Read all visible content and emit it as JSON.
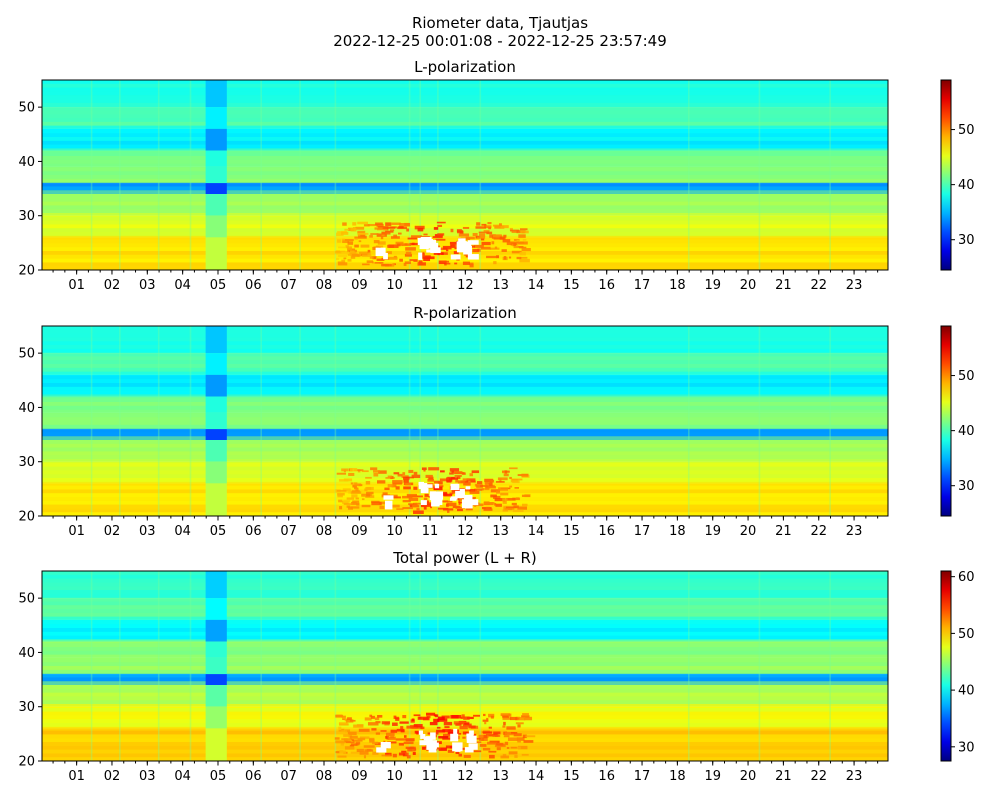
{
  "figure": {
    "title": "Riometer data, Tjautjas",
    "subtitle": "2022-12-25 00:01:08 - 2022-12-25 23:57:49"
  },
  "chart_data": [
    {
      "type": "heatmap",
      "title": "L-polarization",
      "xlabel": "",
      "ylabel": "",
      "x_axis": "hour of day (UTC)",
      "xlim": [
        0.02,
        23.96
      ],
      "ylim": [
        20,
        55
      ],
      "y_ticks": [
        20,
        30,
        40,
        50
      ],
      "x_tick_labels": [
        "01",
        "02",
        "03",
        "04",
        "05",
        "06",
        "07",
        "08",
        "09",
        "10",
        "11",
        "12",
        "13",
        "14",
        "15",
        "16",
        "17",
        "18",
        "19",
        "20",
        "21",
        "22",
        "23"
      ],
      "colormap": "jet",
      "colorbar": {
        "range": [
          24.5,
          59
        ],
        "ticks": [
          30,
          40,
          50
        ]
      },
      "bands": [
        {
          "y_range": [
            50,
            55
          ],
          "level": 38.5
        },
        {
          "y_range": [
            46,
            50
          ],
          "level": 40
        },
        {
          "y_range": [
            42,
            46
          ],
          "level": 37
        },
        {
          "y_range": [
            39,
            42
          ],
          "level": 41.5
        },
        {
          "y_range": [
            36,
            39
          ],
          "level": 42
        },
        {
          "y_range": [
            34,
            36
          ],
          "level": 34
        },
        {
          "y_range": [
            30,
            34
          ],
          "level": 43
        },
        {
          "y_range": [
            26,
            30
          ],
          "level": 45
        },
        {
          "y_range": [
            20,
            26
          ],
          "level": 47
        }
      ],
      "features": [
        {
          "kind": "dip",
          "x_range": [
            4.65,
            5.25
          ],
          "delta": -3
        },
        {
          "kind": "enhancement",
          "x_range": [
            7.5,
            14.5
          ],
          "y_range": [
            20,
            29
          ],
          "level": 53
        },
        {
          "kind": "saturated_gaps",
          "x": [
            10.8,
            11.0,
            11.7,
            12.0,
            9.6
          ],
          "y_range": [
            21,
            26
          ]
        }
      ]
    },
    {
      "type": "heatmap",
      "title": "R-polarization",
      "xlabel": "",
      "ylabel": "",
      "x_axis": "hour of day (UTC)",
      "xlim": [
        0.02,
        23.96
      ],
      "ylim": [
        20,
        55
      ],
      "y_ticks": [
        20,
        30,
        40,
        50
      ],
      "x_tick_labels": [
        "01",
        "02",
        "03",
        "04",
        "05",
        "06",
        "07",
        "08",
        "09",
        "10",
        "11",
        "12",
        "13",
        "14",
        "15",
        "16",
        "17",
        "18",
        "19",
        "20",
        "21",
        "22",
        "23"
      ],
      "colormap": "jet",
      "colorbar": {
        "range": [
          24.5,
          59
        ],
        "ticks": [
          30,
          40,
          50
        ]
      },
      "bands": [
        {
          "y_range": [
            50,
            55
          ],
          "level": 38.5
        },
        {
          "y_range": [
            46,
            50
          ],
          "level": 40
        },
        {
          "y_range": [
            42,
            46
          ],
          "level": 37
        },
        {
          "y_range": [
            39,
            42
          ],
          "level": 41.5
        },
        {
          "y_range": [
            36,
            39
          ],
          "level": 42
        },
        {
          "y_range": [
            34,
            36
          ],
          "level": 34
        },
        {
          "y_range": [
            30,
            34
          ],
          "level": 43
        },
        {
          "y_range": [
            26,
            30
          ],
          "level": 45
        },
        {
          "y_range": [
            20,
            26
          ],
          "level": 47
        }
      ],
      "features": [
        {
          "kind": "dip",
          "x_range": [
            4.65,
            5.25
          ],
          "delta": -3
        },
        {
          "kind": "enhancement",
          "x_range": [
            7.5,
            14.5
          ],
          "y_range": [
            20,
            29
          ],
          "level": 53
        },
        {
          "kind": "saturated_gaps",
          "x": [
            10.8,
            11.0,
            11.7,
            12.0,
            9.6
          ],
          "y_range": [
            21,
            26
          ]
        }
      ]
    },
    {
      "type": "heatmap",
      "title": "Total power (L + R)",
      "xlabel": "",
      "ylabel": "",
      "x_axis": "hour of day (UTC)",
      "xlim": [
        0.02,
        23.96
      ],
      "ylim": [
        20,
        55
      ],
      "y_ticks": [
        20,
        30,
        40,
        50
      ],
      "x_tick_labels": [
        "01",
        "02",
        "03",
        "04",
        "05",
        "06",
        "07",
        "08",
        "09",
        "10",
        "11",
        "12",
        "13",
        "14",
        "15",
        "16",
        "17",
        "18",
        "19",
        "20",
        "21",
        "22",
        "23"
      ],
      "colormap": "jet",
      "colorbar": {
        "range": [
          27.5,
          61
        ],
        "ticks": [
          30,
          40,
          50,
          60
        ]
      },
      "bands": [
        {
          "y_range": [
            50,
            55
          ],
          "level": 41.5
        },
        {
          "y_range": [
            46,
            50
          ],
          "level": 43
        },
        {
          "y_range": [
            42,
            46
          ],
          "level": 40
        },
        {
          "y_range": [
            39,
            42
          ],
          "level": 44.5
        },
        {
          "y_range": [
            36,
            39
          ],
          "level": 45
        },
        {
          "y_range": [
            34,
            36
          ],
          "level": 37
        },
        {
          "y_range": [
            30,
            34
          ],
          "level": 46
        },
        {
          "y_range": [
            26,
            30
          ],
          "level": 48
        },
        {
          "y_range": [
            20,
            26
          ],
          "level": 50
        }
      ],
      "features": [
        {
          "kind": "dip",
          "x_range": [
            4.65,
            5.25
          ],
          "delta": -3
        },
        {
          "kind": "enhancement",
          "x_range": [
            7.5,
            14.5
          ],
          "y_range": [
            20,
            29
          ],
          "level": 56
        },
        {
          "kind": "saturated_gaps",
          "x": [
            10.8,
            11.0,
            11.7,
            12.0,
            9.6
          ],
          "y_range": [
            21,
            26
          ]
        }
      ]
    }
  ]
}
